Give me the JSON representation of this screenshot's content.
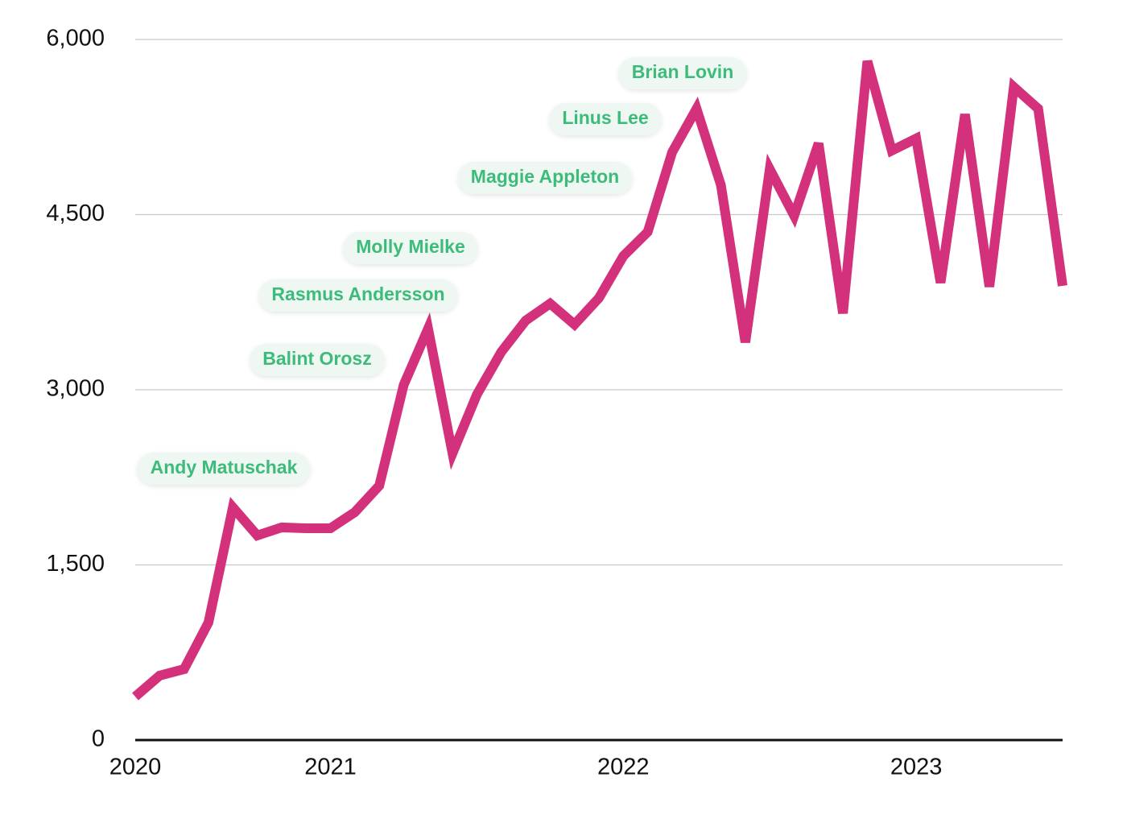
{
  "chart_data": {
    "type": "line",
    "categories": [
      "2020",
      null,
      null,
      null,
      null,
      null,
      null,
      null,
      "2021",
      null,
      null,
      null,
      null,
      null,
      null,
      null,
      null,
      null,
      null,
      null,
      "2022",
      null,
      null,
      null,
      null,
      null,
      null,
      null,
      null,
      null,
      null,
      null,
      "2023",
      null,
      null,
      null,
      null,
      null,
      null
    ],
    "series": [
      {
        "color": "#d3317c",
        "values": [
          372,
          552,
          607,
          1007,
          1993,
          1752,
          1821,
          1814,
          1814,
          1952,
          2179,
          3041,
          3524,
          2455,
          2959,
          3324,
          3593,
          3738,
          3559,
          3786,
          4145,
          4352,
          5034,
          5407,
          4752,
          3407,
          4890,
          4490,
          5110,
          3655,
          5814,
          5048,
          5152,
          3917,
          5359,
          3883,
          5593,
          5407,
          3890
        ]
      }
    ],
    "ylim": [
      0,
      6000
    ],
    "yticks": [
      0,
      {
        "value": 1500,
        "label": "1,500"
      },
      {
        "value": 3000,
        "label": "3,000"
      },
      {
        "value": 4500,
        "label": "4,500"
      },
      {
        "value": 6000,
        "label": "6,000"
      }
    ],
    "grid": true,
    "annotations": [
      "Andy Matuschak",
      "Balint Orosz",
      "Rasmus Andersson",
      "Molly Mielke",
      "Maggie Appleton",
      "Linus Lee",
      "Brian Lovin"
    ],
    "annotation_color": "#3dbb7b"
  }
}
